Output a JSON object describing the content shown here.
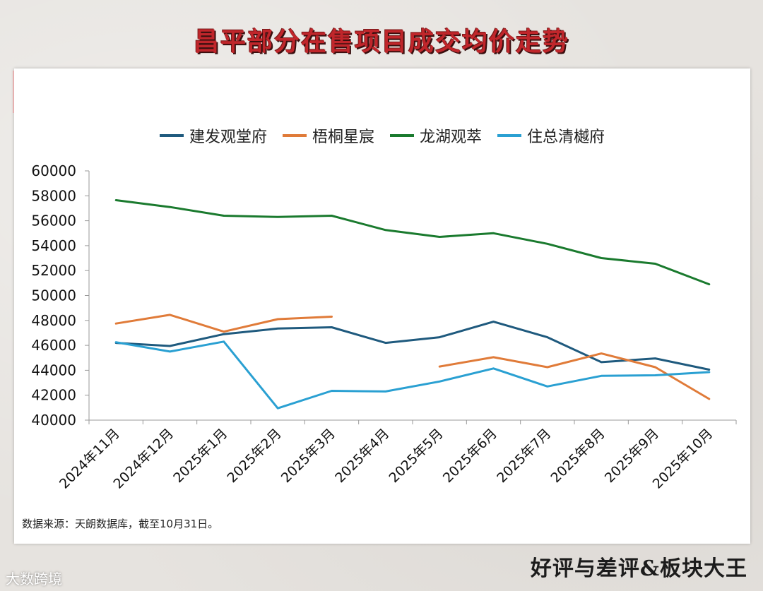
{
  "title": "昌平部分在售项目成交均价走势",
  "source": "数据来源：天朗数据库，截至10月31日。",
  "footer": {
    "brand": "好评与差评&板块大王",
    "left_badge": "大数跨境"
  },
  "watermark": "好评与差评&板块大王",
  "chart_data": {
    "type": "line",
    "categories": [
      "2024年11月",
      "2024年12月",
      "2025年1月",
      "2025年2月",
      "2025年3月",
      "2025年4月",
      "2025年5月",
      "2025年6月",
      "2025年7月",
      "2025年8月",
      "2025年9月",
      "2025年10月"
    ],
    "ylim": [
      40000,
      60000
    ],
    "yticks": [
      40000,
      42000,
      44000,
      46000,
      48000,
      50000,
      52000,
      54000,
      56000,
      58000,
      60000
    ],
    "legend_position": "top",
    "grid": false,
    "series": [
      {
        "name": "建发观堂府",
        "color": "#1f5a7e",
        "values": [
          46200,
          45950,
          46900,
          47350,
          47450,
          46200,
          46650,
          47900,
          46650,
          44650,
          44950,
          44050
        ]
      },
      {
        "name": "梧桐星宸",
        "color": "#e07b39",
        "values": [
          47750,
          48450,
          47100,
          48100,
          48300,
          null,
          44300,
          45050,
          44250,
          45350,
          44250,
          41700
        ]
      },
      {
        "name": "龙湖观萃",
        "color": "#1a7a2e",
        "values": [
          57650,
          57100,
          56400,
          56300,
          56400,
          55250,
          54700,
          55000,
          54150,
          53000,
          52550,
          50900
        ]
      },
      {
        "name": "住总清樾府",
        "color": "#2aa0d2",
        "values": [
          46250,
          45500,
          46300,
          40950,
          42350,
          42300,
          43100,
          44150,
          42700,
          43550,
          43600,
          43850
        ]
      }
    ]
  }
}
